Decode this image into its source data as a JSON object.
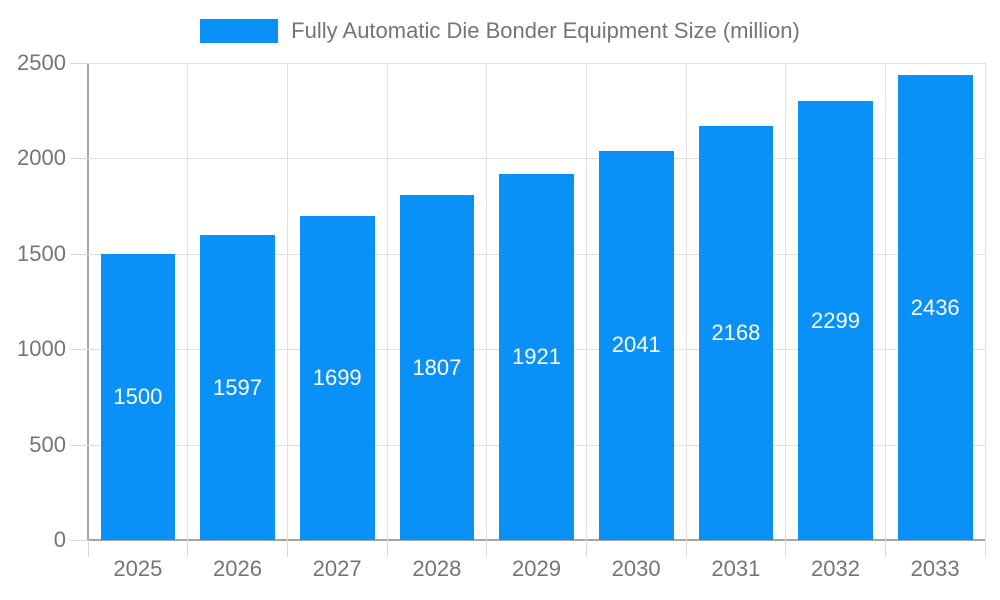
{
  "legend": {
    "label": "Fully Automatic Die Bonder Equipment Size (million)"
  },
  "chart_data": {
    "type": "bar",
    "title": "Fully Automatic Die Bonder Equipment Size (million)",
    "categories": [
      "2025",
      "2026",
      "2027",
      "2028",
      "2029",
      "2030",
      "2031",
      "2032",
      "2033"
    ],
    "values": [
      1500,
      1597,
      1699,
      1807,
      1921,
      2041,
      2168,
      2299,
      2436
    ],
    "series": [
      {
        "name": "Fully Automatic Die Bonder Equipment Size (million)",
        "values": [
          1500,
          1597,
          1699,
          1807,
          1921,
          2041,
          2168,
          2299,
          2436
        ]
      }
    ],
    "xlabel": "",
    "ylabel": "",
    "ylim": [
      0,
      2500
    ],
    "y_ticks": [
      0,
      500,
      1000,
      1500,
      2000,
      2500
    ],
    "grid": true,
    "legend_position": "top",
    "value_labels": "inside-center",
    "colors": {
      "bar": "#0991f8",
      "value_label": "#ffffff",
      "axis_text": "#757575",
      "gridline": "#e0e0e0",
      "axis_line": "#a6a6a6",
      "tick": "#d9d9d9"
    }
  }
}
